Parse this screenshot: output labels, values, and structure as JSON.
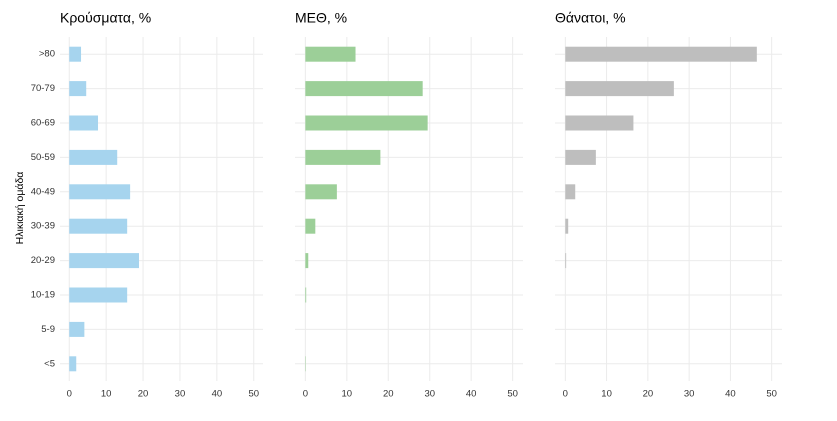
{
  "chart_data": [
    {
      "type": "bar",
      "title": "Κρούσματα, %",
      "y_label": "Ηλικιακή ομάδα",
      "categories": [
        ">80",
        "70-79",
        "60-69",
        "50-59",
        "40-49",
        "30-39",
        "20-29",
        "10-19",
        "5-9",
        "<5"
      ],
      "values": [
        3.2,
        4.6,
        7.8,
        13.0,
        16.5,
        15.7,
        18.9,
        15.7,
        4.1,
        1.9
      ],
      "color": "#a6d4ee",
      "xlim": [
        -2.5,
        52.5
      ],
      "xticks": [
        0,
        10,
        20,
        30,
        40,
        50
      ],
      "grid": true
    },
    {
      "type": "bar",
      "title": "ΜΕΘ, %",
      "values": [
        12.1,
        28.3,
        29.5,
        18.1,
        7.6,
        2.4,
        0.7,
        0.2,
        0,
        0.1
      ],
      "color": "#9ccf98",
      "xlim": [
        -2.5,
        52.5
      ],
      "xticks": [
        0,
        10,
        20,
        30,
        40,
        50
      ],
      "grid": true
    },
    {
      "type": "bar",
      "title": "Θάνατοι, %",
      "values": [
        46.4,
        26.3,
        16.5,
        7.4,
        2.4,
        0.7,
        0.2,
        0,
        0,
        0
      ],
      "color": "#bebebe",
      "xlim": [
        -2.5,
        52.5
      ],
      "xticks": [
        0,
        10,
        20,
        30,
        40,
        50
      ],
      "grid": true
    }
  ]
}
